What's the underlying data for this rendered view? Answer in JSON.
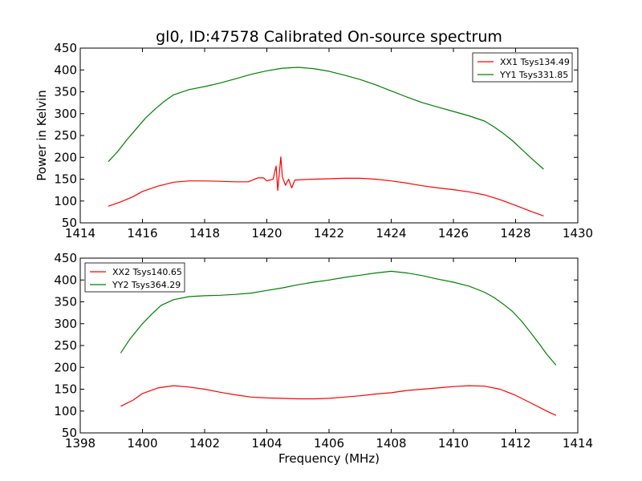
{
  "figure": {
    "title": "gl0, ID:47578 Calibrated On-source spectrum",
    "ylabel": "Power in Kelvin",
    "xlabel": "Frequency (MHz)"
  },
  "chart_data": [
    {
      "type": "line",
      "title": "gl0, ID:47578 Calibrated On-source spectrum",
      "ylabel": "Power in Kelvin",
      "xlabel": "",
      "xlim": [
        1414,
        1430
      ],
      "ylim": [
        50,
        450
      ],
      "xticks": [
        "1414",
        "1416",
        "1418",
        "1420",
        "1422",
        "1424",
        "1426",
        "1428",
        "1430"
      ],
      "yticks": [
        "50",
        "100",
        "150",
        "200",
        "250",
        "300",
        "350",
        "400",
        "450"
      ],
      "legend_position": "top-right",
      "series": [
        {
          "name": "XX1 Tsys134.49",
          "color": "#ff0000",
          "points": [
            [
              1414.9,
              88
            ],
            [
              1415.3,
              98
            ],
            [
              1415.7,
              110
            ],
            [
              1416.0,
              122
            ],
            [
              1416.5,
              134
            ],
            [
              1417.0,
              143
            ],
            [
              1417.5,
              146
            ],
            [
              1418.0,
              146
            ],
            [
              1418.5,
              145
            ],
            [
              1419.0,
              144
            ],
            [
              1419.4,
              144
            ],
            [
              1419.7,
              153
            ],
            [
              1419.9,
              153
            ],
            [
              1420.0,
              146
            ],
            [
              1420.2,
              150
            ],
            [
              1420.3,
              180
            ],
            [
              1420.35,
              124
            ],
            [
              1420.45,
              201
            ],
            [
              1420.5,
              155
            ],
            [
              1420.6,
              136
            ],
            [
              1420.7,
              150
            ],
            [
              1420.8,
              130
            ],
            [
              1420.9,
              148
            ],
            [
              1421.5,
              150
            ],
            [
              1422.0,
              151
            ],
            [
              1422.5,
              152
            ],
            [
              1423.0,
              152
            ],
            [
              1423.5,
              150
            ],
            [
              1424.0,
              146
            ],
            [
              1424.5,
              141
            ],
            [
              1425.0,
              135
            ],
            [
              1425.5,
              130
            ],
            [
              1426.0,
              126
            ],
            [
              1426.5,
              121
            ],
            [
              1427.0,
              114
            ],
            [
              1427.5,
              103
            ],
            [
              1428.0,
              90
            ],
            [
              1428.5,
              76
            ],
            [
              1428.9,
              66
            ]
          ]
        },
        {
          "name": "YY1 Tsys331.85",
          "color": "#008000",
          "points": [
            [
              1414.9,
              190
            ],
            [
              1415.2,
              213
            ],
            [
              1415.5,
              240
            ],
            [
              1415.8,
              265
            ],
            [
              1416.1,
              290
            ],
            [
              1416.4,
              310
            ],
            [
              1416.7,
              328
            ],
            [
              1417.0,
              343
            ],
            [
              1417.5,
              355
            ],
            [
              1418.0,
              362
            ],
            [
              1418.5,
              370
            ],
            [
              1419.0,
              380
            ],
            [
              1419.5,
              390
            ],
            [
              1420.0,
              398
            ],
            [
              1420.5,
              404
            ],
            [
              1421.0,
              406
            ],
            [
              1421.5,
              403
            ],
            [
              1422.0,
              397
            ],
            [
              1422.5,
              388
            ],
            [
              1423.0,
              378
            ],
            [
              1423.5,
              366
            ],
            [
              1424.0,
              352
            ],
            [
              1424.5,
              338
            ],
            [
              1425.0,
              325
            ],
            [
              1425.5,
              315
            ],
            [
              1426.0,
              305
            ],
            [
              1426.5,
              295
            ],
            [
              1427.0,
              283
            ],
            [
              1427.3,
              270
            ],
            [
              1427.6,
              255
            ],
            [
              1427.9,
              238
            ],
            [
              1428.2,
              218
            ],
            [
              1428.5,
              198
            ],
            [
              1428.9,
              173
            ]
          ]
        }
      ]
    },
    {
      "type": "line",
      "title": "",
      "ylabel": "",
      "xlabel": "Frequency (MHz)",
      "xlim": [
        1398,
        1414
      ],
      "ylim": [
        50,
        450
      ],
      "xticks": [
        "1398",
        "1400",
        "1402",
        "1404",
        "1406",
        "1408",
        "1410",
        "1412",
        "1414"
      ],
      "yticks": [
        "50",
        "100",
        "150",
        "200",
        "250",
        "300",
        "350",
        "400",
        "450"
      ],
      "legend_position": "top-left",
      "series": [
        {
          "name": "XX2 Tsys140.65",
          "color": "#ff0000",
          "points": [
            [
              1399.3,
              111
            ],
            [
              1399.7,
              125
            ],
            [
              1400.0,
              140
            ],
            [
              1400.5,
              153
            ],
            [
              1401.0,
              158
            ],
            [
              1401.5,
              155
            ],
            [
              1402.0,
              150
            ],
            [
              1402.5,
              143
            ],
            [
              1403.0,
              137
            ],
            [
              1403.5,
              132
            ],
            [
              1404.0,
              130
            ],
            [
              1404.5,
              129
            ],
            [
              1405.0,
              128
            ],
            [
              1405.5,
              128
            ],
            [
              1406.0,
              129
            ],
            [
              1406.5,
              132
            ],
            [
              1407.0,
              135
            ],
            [
              1407.5,
              139
            ],
            [
              1408.0,
              142
            ],
            [
              1408.5,
              147
            ],
            [
              1409.0,
              150
            ],
            [
              1409.5,
              153
            ],
            [
              1410.0,
              156
            ],
            [
              1410.5,
              158
            ],
            [
              1411.0,
              157
            ],
            [
              1411.5,
              150
            ],
            [
              1412.0,
              136
            ],
            [
              1412.5,
              118
            ],
            [
              1413.0,
              100
            ],
            [
              1413.3,
              90
            ]
          ]
        },
        {
          "name": "YY2 Tsys364.29",
          "color": "#008000",
          "points": [
            [
              1399.3,
              233
            ],
            [
              1399.6,
              265
            ],
            [
              1400.0,
              300
            ],
            [
              1400.3,
              322
            ],
            [
              1400.6,
              342
            ],
            [
              1401.0,
              355
            ],
            [
              1401.5,
              362
            ],
            [
              1402.0,
              364
            ],
            [
              1402.5,
              365
            ],
            [
              1403.0,
              367
            ],
            [
              1403.5,
              370
            ],
            [
              1404.0,
              376
            ],
            [
              1404.5,
              382
            ],
            [
              1405.0,
              389
            ],
            [
              1405.5,
              395
            ],
            [
              1406.0,
              400
            ],
            [
              1406.5,
              406
            ],
            [
              1407.0,
              411
            ],
            [
              1407.5,
              416
            ],
            [
              1408.0,
              420
            ],
            [
              1408.5,
              416
            ],
            [
              1409.0,
              410
            ],
            [
              1409.5,
              402
            ],
            [
              1410.0,
              395
            ],
            [
              1410.5,
              386
            ],
            [
              1411.0,
              372
            ],
            [
              1411.3,
              360
            ],
            [
              1411.6,
              345
            ],
            [
              1411.9,
              328
            ],
            [
              1412.2,
              305
            ],
            [
              1412.5,
              278
            ],
            [
              1412.8,
              250
            ],
            [
              1413.0,
              230
            ],
            [
              1413.3,
              205
            ]
          ]
        }
      ]
    }
  ]
}
